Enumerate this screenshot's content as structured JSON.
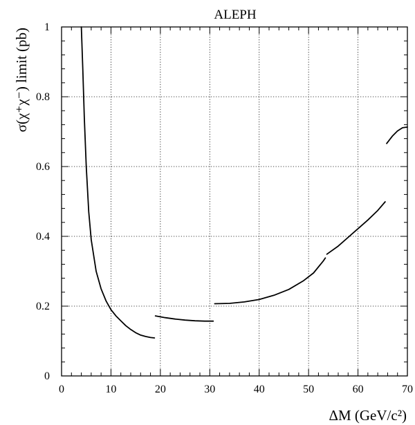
{
  "chart_data": {
    "type": "line",
    "title": "ALEPH",
    "xlabel": "ΔM (GeV/c²)",
    "ylabel": "σ(χ⁺χ⁻) limit (pb)",
    "xlim": [
      0,
      70
    ],
    "ylim": [
      0,
      1
    ],
    "x_ticks": [
      0,
      10,
      20,
      30,
      40,
      50,
      60,
      70
    ],
    "y_ticks": [
      0,
      0.2,
      0.4,
      0.6,
      0.8,
      1
    ],
    "x_tick_labels": [
      "0",
      "10",
      "20",
      "30",
      "40",
      "50",
      "60",
      "70"
    ],
    "y_tick_labels": [
      "0",
      "0.2",
      "0.4",
      "0.6",
      "0.8",
      "1"
    ],
    "grid": true,
    "series": [
      {
        "segments": [
          [
            [
              4.0,
              1.0
            ],
            [
              4.3,
              0.88
            ],
            [
              4.6,
              0.74
            ],
            [
              5.0,
              0.6
            ],
            [
              5.5,
              0.47
            ],
            [
              6.0,
              0.39
            ],
            [
              7.0,
              0.3
            ],
            [
              8.0,
              0.25
            ],
            [
              9.0,
              0.215
            ],
            [
              10.0,
              0.19
            ],
            [
              11.0,
              0.172
            ],
            [
              12.0,
              0.158
            ],
            [
              13.0,
              0.144
            ],
            [
              14.0,
              0.133
            ],
            [
              15.0,
              0.124
            ],
            [
              16.0,
              0.117
            ],
            [
              17.0,
              0.113
            ],
            [
              18.0,
              0.11
            ],
            [
              18.8,
              0.109
            ]
          ],
          [
            [
              19.0,
              0.172
            ],
            [
              21.0,
              0.167
            ],
            [
              23.0,
              0.163
            ],
            [
              25.0,
              0.16
            ],
            [
              27.0,
              0.158
            ],
            [
              29.0,
              0.157
            ],
            [
              30.7,
              0.157
            ]
          ],
          [
            [
              31.0,
              0.207
            ],
            [
              34.0,
              0.208
            ],
            [
              37.0,
              0.212
            ],
            [
              40.0,
              0.219
            ],
            [
              43.0,
              0.231
            ],
            [
              46.0,
              0.248
            ],
            [
              49.0,
              0.273
            ],
            [
              51.0,
              0.295
            ],
            [
              53.0,
              0.33
            ],
            [
              53.4,
              0.338
            ]
          ],
          [
            [
              53.7,
              0.349
            ],
            [
              56.0,
              0.372
            ],
            [
              58.0,
              0.397
            ],
            [
              60.0,
              0.422
            ],
            [
              62.0,
              0.447
            ],
            [
              64.0,
              0.474
            ],
            [
              65.5,
              0.499
            ]
          ],
          [
            [
              65.8,
              0.666
            ],
            [
              67.0,
              0.688
            ],
            [
              68.0,
              0.702
            ],
            [
              69.0,
              0.711
            ],
            [
              70.0,
              0.713
            ]
          ]
        ]
      }
    ]
  }
}
